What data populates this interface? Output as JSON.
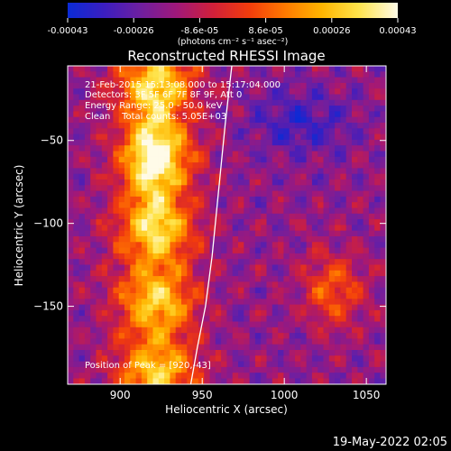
{
  "chart_data": {
    "type": "heatmap",
    "title": "Reconstructed RHESSI Image",
    "xlabel": "Heliocentric X (arcsec)",
    "ylabel": "Heliocentric Y (arcsec)",
    "xlim": [
      868,
      1062
    ],
    "ylim": [
      -197,
      -5
    ],
    "x_ticks": [
      900,
      950,
      1000,
      1050
    ],
    "y_ticks": [
      -50,
      -100,
      -150
    ],
    "grid": false,
    "colorbar": {
      "location": "top",
      "vmin": -0.00043,
      "vmax": 0.00043,
      "tick_labels": [
        "-0.00043",
        "-0.00026",
        "-8.6e-05",
        "8.6e-05",
        "0.00026",
        "0.00043"
      ],
      "units": "(photons cm⁻² s⁻¹ asec⁻²)",
      "colors": [
        "#0a2bd6",
        "#3b1ec0",
        "#6e1fa0",
        "#a0187a",
        "#d0203a",
        "#f23c0c",
        "#ff7a00",
        "#ffb500",
        "#ffe34a",
        "#fffbe8"
      ]
    },
    "annotations": [
      "21-Feb-2015 15:13:08.000 to 15:17:04.000",
      "Detectors: 3F 5F 6F 7F 8F 9F, Att 0",
      "Energy Range: 25.0 - 50.0 keV",
      "Clean    Total counts: 5.05E+03",
      "Position of Peak = [920,-43]"
    ],
    "limb_curve": [
      [
        968,
        -5
      ],
      [
        964,
        -40
      ],
      [
        960,
        -80
      ],
      [
        956,
        -120
      ],
      [
        952,
        -150
      ],
      [
        947,
        -175
      ],
      [
        943,
        -197
      ]
    ]
  },
  "timestamp": "19-May-2022 02:05"
}
